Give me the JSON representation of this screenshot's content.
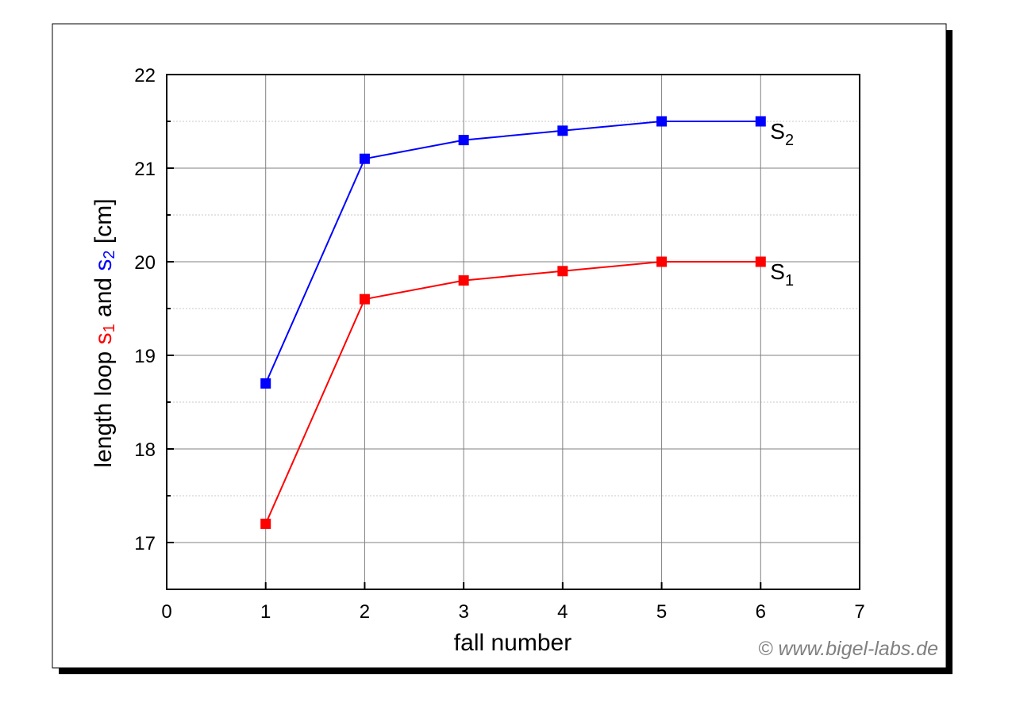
{
  "chart_data": {
    "type": "line",
    "xlabel": "fall number",
    "ylabel": [
      {
        "text": "length loop ",
        "color": "#000000",
        "sub": false
      },
      {
        "text": "s",
        "color": "#ff0000",
        "sub": false
      },
      {
        "text": "1",
        "color": "#ff0000",
        "sub": true
      },
      {
        "text": " and ",
        "color": "#000000",
        "sub": false
      },
      {
        "text": "s",
        "color": "#0000ff",
        "sub": false
      },
      {
        "text": "2",
        "color": "#0000ff",
        "sub": true
      },
      {
        "text": " [cm]",
        "color": "#000000",
        "sub": false
      }
    ],
    "x": [
      1,
      2,
      3,
      4,
      5,
      6
    ],
    "series": [
      {
        "name": "S",
        "subscript": "2",
        "color": "#0000ff",
        "values": [
          18.7,
          21.1,
          21.3,
          21.4,
          21.5,
          21.5
        ]
      },
      {
        "name": "S",
        "subscript": "1",
        "color": "#ff0000",
        "values": [
          17.2,
          19.6,
          19.8,
          19.9,
          20.0,
          20.0
        ]
      }
    ],
    "xlim": [
      0,
      7
    ],
    "xticks": [
      0,
      1,
      2,
      3,
      4,
      5,
      6,
      7
    ],
    "ylim": [
      16.5,
      22
    ],
    "yticks": [
      17,
      18,
      19,
      20,
      21,
      22
    ],
    "yminorticks": [
      16.5,
      17.5,
      18.5,
      19.5,
      20.5,
      21.5
    ],
    "grid": true,
    "watermark": "© www.bigel-labs.de"
  }
}
